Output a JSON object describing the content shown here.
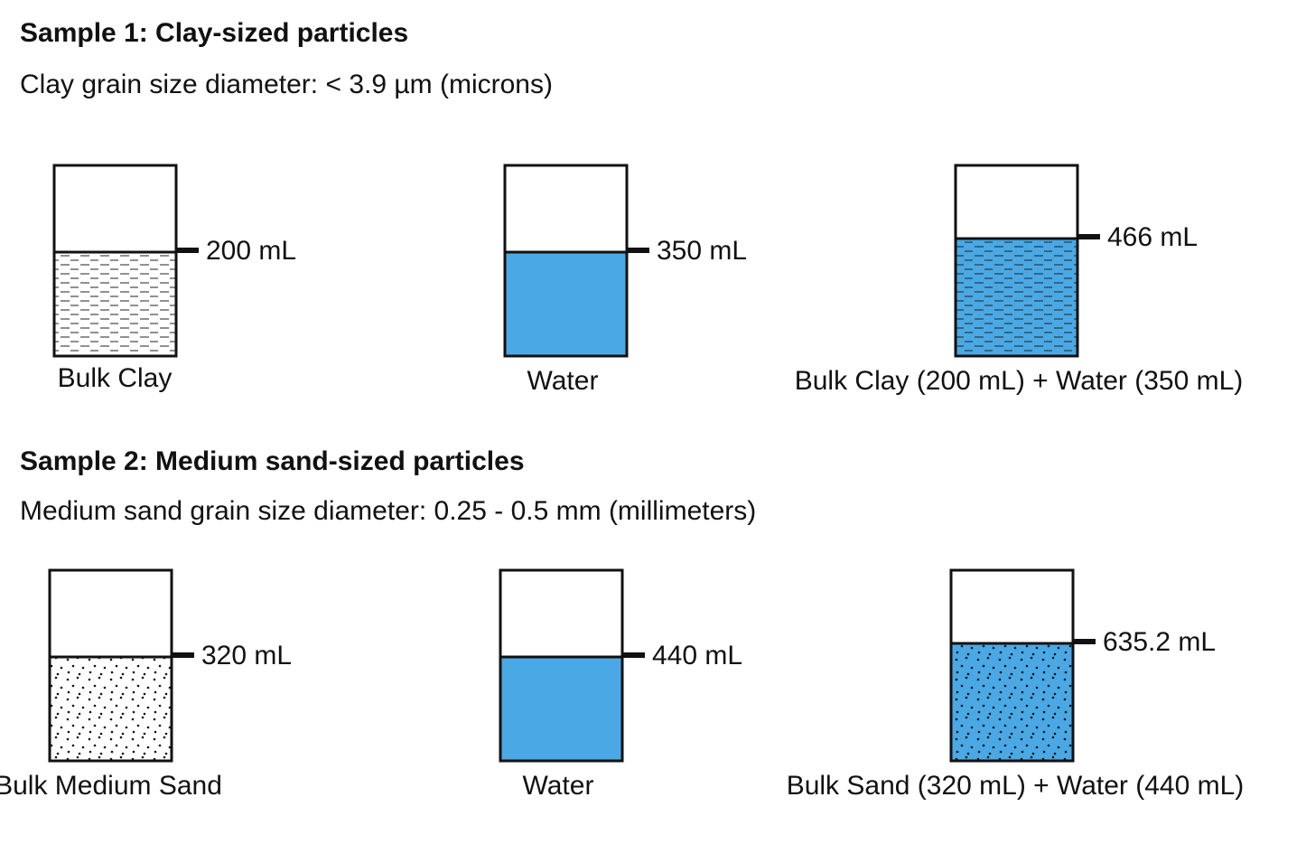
{
  "samples": [
    {
      "title": "Sample 1: Clay-sized particles",
      "subtitle": "Clay grain size diameter: < 3.9 µm (microns)",
      "beakers": [
        {
          "level": "200 mL",
          "caption": "Bulk Clay"
        },
        {
          "level": "350 mL",
          "caption": "Water"
        },
        {
          "level": "466 mL",
          "caption": "Bulk Clay (200 mL) + Water (350 mL)"
        }
      ]
    },
    {
      "title": "Sample 2: Medium sand-sized particles",
      "subtitle": "Medium sand grain size diameter: 0.25 - 0.5 mm (millimeters)",
      "beakers": [
        {
          "level": "320 mL",
          "caption": "Bulk Medium Sand"
        },
        {
          "level": "440 mL",
          "caption": "Water"
        },
        {
          "level": "635.2 mL",
          "caption": "Bulk Sand (320 mL) + Water (440 mL)"
        }
      ]
    }
  ]
}
